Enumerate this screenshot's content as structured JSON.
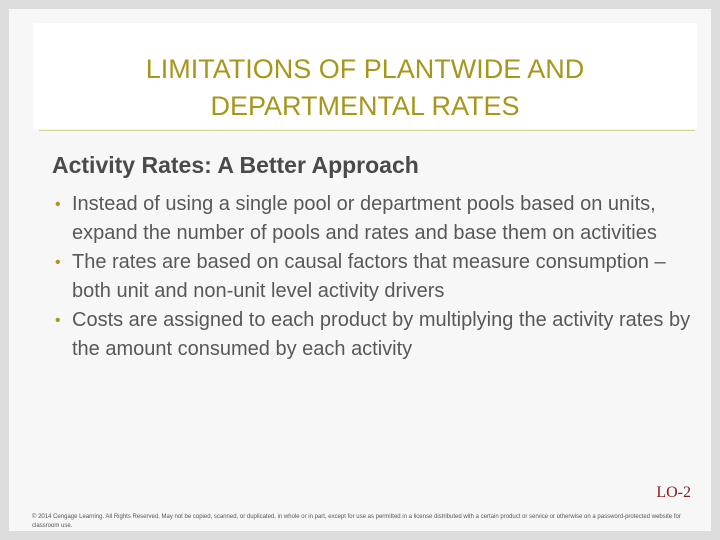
{
  "slide": {
    "title": "LIMITATIONS OF PLANTWIDE AND\nDEPARTMENTAL RATES",
    "subtitle": "Activity Rates: A Better Approach",
    "bullets": [
      "Instead of using a single pool or department pools based on units, expand the number of pools and rates and base them on activities",
      "The rates are based on causal factors that measure consumption – both unit and non-unit level activity drivers",
      "Costs are assigned to each product by multiplying the activity rates by the amount consumed by each activity"
    ],
    "bullet_symbol": "•",
    "lo_label": "LO-2",
    "footer": "© 2014 Cengage Learning. All Rights Reserved. May not be copied, scanned, or duplicated, in whole or in part, except for use as permitted in a license distributed with a certain product or service or otherwise on a password-protected website for classroom use."
  },
  "colors": {
    "title": "#a7961c",
    "lo": "#8b1a1a",
    "text": "#585858"
  }
}
